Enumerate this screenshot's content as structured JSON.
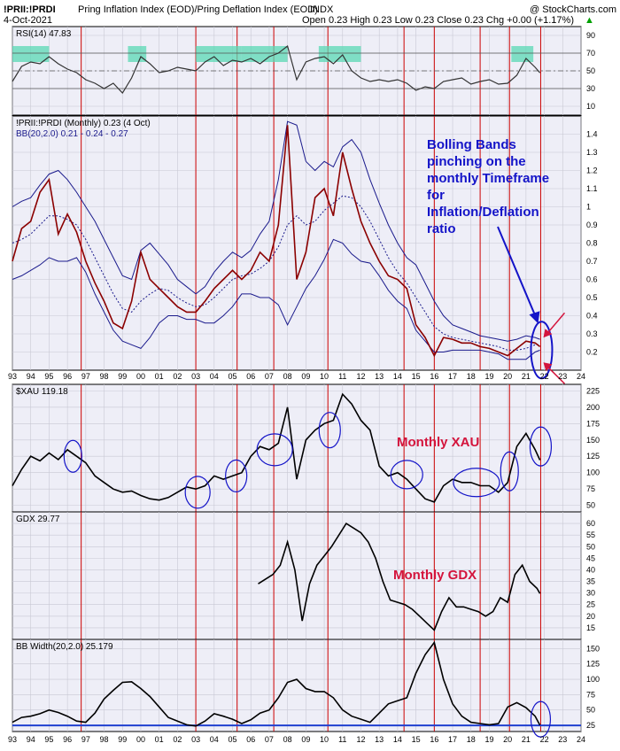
{
  "header": {
    "symbol": "!PRII:!PRDI",
    "title": "Pring Inflation Index (EOD)/Pring Deflation Index (EOD)",
    "exchange": "INDX",
    "watermark": "@ StockCharts.com",
    "date": "4-Oct-2021",
    "ohlc": "Open 0.23  High 0.23  Low 0.23  Close 0.23  Chg +0.00 (+1.17%)",
    "chg_arrow": "▲"
  },
  "colors": {
    "background": "#ffffff",
    "panel_bg": "#eeeef7",
    "grid": "#c8c8d4",
    "vline": "#cc0000",
    "price": "#8b0000",
    "bands": "#1a1a8c",
    "rsi_fill": "#5ad8b4",
    "black": "#000000",
    "annotation_blue": "#1414c8",
    "annotation_red": "#d4143c",
    "zero_line": "#2040d0"
  },
  "x_axis": {
    "start_year": 1993,
    "end_year": 2024,
    "tick_labels": [
      "93",
      "94",
      "95",
      "96",
      "97",
      "98",
      "99",
      "00",
      "01",
      "02",
      "03",
      "04",
      "05",
      "06",
      "07",
      "08",
      "09",
      "10",
      "11",
      "12",
      "13",
      "14",
      "15",
      "16",
      "17",
      "18",
      "19",
      "20",
      "21",
      "22",
      "23",
      "24"
    ],
    "red_vertical_line_years": [
      1996.75,
      2003.0,
      2005.25,
      2007.25,
      2010.2,
      2014.35,
      2016.0,
      2018.5,
      2020.1,
      2021.8
    ]
  },
  "annotations": {
    "bollinger": [
      "Bolling Bands",
      "pinching on the",
      "monthly Timeframe",
      "for",
      "Inflation/Deflation",
      "ratio"
    ],
    "xau": "Monthly XAU",
    "gdx": "Monthly GDX"
  },
  "chart_data": [
    {
      "type": "line",
      "panel": "rsi",
      "label": "RSI(14) 47.83",
      "ylim": [
        0,
        100
      ],
      "y_ticks": [
        10,
        30,
        50,
        70,
        90
      ],
      "reference_lines": [
        30,
        50,
        70
      ],
      "x": [
        1993,
        1993.5,
        1994,
        1994.5,
        1995,
        1995.5,
        1996,
        1996.5,
        1997,
        1997.5,
        1998,
        1998.5,
        1999,
        1999.5,
        2000,
        2000.5,
        2001,
        2001.5,
        2002,
        2002.5,
        2003,
        2003.5,
        2004,
        2004.5,
        2005,
        2005.5,
        2006,
        2006.5,
        2007,
        2007.5,
        2008,
        2008.5,
        2009,
        2009.5,
        2010,
        2010.5,
        2011,
        2011.5,
        2012,
        2012.5,
        2013,
        2013.5,
        2014,
        2014.5,
        2015,
        2015.5,
        2016,
        2016.5,
        2017,
        2017.5,
        2018,
        2018.5,
        2019,
        2019.5,
        2020,
        2020.5,
        2021,
        2021.5,
        2021.76
      ],
      "values": [
        38,
        55,
        60,
        58,
        66,
        58,
        52,
        48,
        40,
        36,
        30,
        36,
        25,
        42,
        66,
        58,
        48,
        50,
        54,
        52,
        50,
        60,
        66,
        56,
        62,
        60,
        64,
        58,
        66,
        70,
        78,
        40,
        60,
        64,
        66,
        58,
        68,
        50,
        42,
        38,
        40,
        38,
        40,
        36,
        28,
        32,
        30,
        38,
        40,
        42,
        35,
        38,
        40,
        35,
        36,
        45,
        64,
        54,
        47.83
      ],
      "overbought_shaded_ranges": [
        [
          1993.0,
          1995.0
        ],
        [
          1999.3,
          2000.3
        ],
        [
          2003.0,
          2005.5
        ],
        [
          2005.5,
          2007.0
        ],
        [
          2007.0,
          2008.0
        ],
        [
          2009.7,
          2011.0
        ],
        [
          2011.0,
          2012.0
        ],
        [
          2020.2,
          2021.4
        ]
      ]
    },
    {
      "type": "line",
      "panel": "ratio",
      "label": "!PRII:!PRDI (Monthly) 0.23 (4 Oct)",
      "bands_label": "BB(20,2.0) 0.21 - 0.24 - 0.27",
      "ylim": [
        0.1,
        1.5
      ],
      "y_ticks": [
        0.2,
        0.3,
        0.4,
        0.5,
        0.6,
        0.7,
        0.8,
        0.9,
        1.0,
        1.1,
        1.2,
        1.3,
        1.4
      ],
      "x": [
        1993,
        1993.5,
        1994,
        1994.5,
        1995,
        1995.5,
        1996,
        1996.5,
        1997,
        1997.5,
        1998,
        1998.5,
        1999,
        1999.5,
        2000,
        2000.5,
        2001,
        2001.5,
        2002,
        2002.5,
        2003,
        2003.5,
        2004,
        2004.5,
        2005,
        2005.5,
        2006,
        2006.5,
        2007,
        2007.5,
        2008,
        2008.5,
        2009,
        2009.5,
        2010,
        2010.5,
        2011,
        2011.5,
        2012,
        2012.5,
        2013,
        2013.5,
        2014,
        2014.5,
        2015,
        2015.5,
        2016,
        2016.5,
        2017,
        2017.5,
        2018,
        2018.5,
        2019,
        2019.5,
        2020,
        2020.5,
        2021,
        2021.5,
        2021.76
      ],
      "values": [
        0.7,
        0.88,
        0.92,
        1.08,
        1.15,
        0.85,
        0.96,
        0.86,
        0.7,
        0.58,
        0.48,
        0.36,
        0.33,
        0.48,
        0.75,
        0.6,
        0.55,
        0.5,
        0.45,
        0.42,
        0.42,
        0.48,
        0.55,
        0.6,
        0.65,
        0.6,
        0.65,
        0.75,
        0.7,
        0.9,
        1.45,
        0.6,
        0.75,
        1.05,
        1.1,
        0.95,
        1.3,
        1.1,
        0.92,
        0.8,
        0.7,
        0.62,
        0.6,
        0.55,
        0.35,
        0.28,
        0.18,
        0.28,
        0.27,
        0.25,
        0.25,
        0.23,
        0.22,
        0.2,
        0.18,
        0.22,
        0.26,
        0.25,
        0.23
      ],
      "middle_band": [
        0.8,
        0.82,
        0.85,
        0.9,
        0.95,
        0.95,
        0.93,
        0.9,
        0.82,
        0.72,
        0.62,
        0.52,
        0.44,
        0.42,
        0.48,
        0.52,
        0.55,
        0.54,
        0.5,
        0.47,
        0.45,
        0.46,
        0.5,
        0.55,
        0.6,
        0.62,
        0.63,
        0.66,
        0.7,
        0.78,
        0.9,
        0.95,
        0.9,
        0.92,
        0.98,
        1.02,
        1.06,
        1.05,
        1.0,
        0.92,
        0.82,
        0.72,
        0.64,
        0.58,
        0.5,
        0.42,
        0.34,
        0.3,
        0.28,
        0.27,
        0.26,
        0.25,
        0.24,
        0.23,
        0.21,
        0.21,
        0.22,
        0.24,
        0.24
      ],
      "upper_band": [
        1.0,
        1.03,
        1.05,
        1.12,
        1.18,
        1.2,
        1.15,
        1.08,
        1.0,
        0.92,
        0.82,
        0.72,
        0.62,
        0.6,
        0.76,
        0.8,
        0.74,
        0.68,
        0.6,
        0.56,
        0.52,
        0.56,
        0.64,
        0.7,
        0.75,
        0.72,
        0.76,
        0.85,
        0.92,
        1.15,
        1.47,
        1.45,
        1.25,
        1.2,
        1.25,
        1.22,
        1.33,
        1.37,
        1.3,
        1.15,
        1.02,
        0.9,
        0.8,
        0.72,
        0.68,
        0.58,
        0.48,
        0.4,
        0.35,
        0.33,
        0.31,
        0.29,
        0.28,
        0.27,
        0.26,
        0.27,
        0.29,
        0.28,
        0.27
      ],
      "lower_band": [
        0.6,
        0.62,
        0.65,
        0.68,
        0.72,
        0.7,
        0.7,
        0.72,
        0.64,
        0.52,
        0.42,
        0.32,
        0.26,
        0.24,
        0.22,
        0.28,
        0.36,
        0.4,
        0.4,
        0.38,
        0.38,
        0.36,
        0.36,
        0.4,
        0.45,
        0.52,
        0.52,
        0.5,
        0.5,
        0.46,
        0.35,
        0.45,
        0.55,
        0.62,
        0.71,
        0.82,
        0.8,
        0.74,
        0.7,
        0.69,
        0.62,
        0.54,
        0.48,
        0.44,
        0.32,
        0.26,
        0.2,
        0.2,
        0.21,
        0.21,
        0.21,
        0.21,
        0.2,
        0.19,
        0.16,
        0.16,
        0.16,
        0.2,
        0.21
      ]
    },
    {
      "type": "line",
      "panel": "xau",
      "label": "$XAU 119.18",
      "ylim": [
        40,
        235
      ],
      "y_ticks": [
        50,
        75,
        100,
        125,
        150,
        175,
        200,
        225
      ],
      "x": [
        1993,
        1993.5,
        1994,
        1994.5,
        1995,
        1995.5,
        1996,
        1996.5,
        1997,
        1997.5,
        1998,
        1998.5,
        1999,
        1999.5,
        2000,
        2000.5,
        2001,
        2001.5,
        2002,
        2002.5,
        2003,
        2003.5,
        2004,
        2004.5,
        2005,
        2005.5,
        2006,
        2006.5,
        2007,
        2007.5,
        2008,
        2008.5,
        2009,
        2009.5,
        2010,
        2010.5,
        2011,
        2011.5,
        2012,
        2012.5,
        2013,
        2013.5,
        2014,
        2014.5,
        2015,
        2015.5,
        2016,
        2016.5,
        2017,
        2017.5,
        2018,
        2018.5,
        2019,
        2019.5,
        2020,
        2020.5,
        2021,
        2021.5,
        2021.76
      ],
      "values": [
        80,
        105,
        125,
        118,
        130,
        120,
        135,
        125,
        115,
        95,
        85,
        75,
        70,
        72,
        65,
        60,
        58,
        62,
        70,
        78,
        75,
        80,
        95,
        90,
        95,
        100,
        125,
        140,
        135,
        145,
        200,
        90,
        150,
        165,
        175,
        180,
        220,
        205,
        180,
        165,
        110,
        95,
        100,
        90,
        75,
        60,
        55,
        80,
        90,
        85,
        85,
        80,
        80,
        70,
        85,
        140,
        160,
        135,
        119.18
      ]
    },
    {
      "type": "line",
      "panel": "gdx",
      "label": "GDX 29.77",
      "ylim": [
        10,
        65
      ],
      "y_ticks": [
        15,
        20,
        25,
        30,
        35,
        40,
        45,
        50,
        55,
        60
      ],
      "x": [
        2006.4,
        2006.8,
        2007.2,
        2007.6,
        2008,
        2008.4,
        2008.8,
        2009.2,
        2009.6,
        2010,
        2010.4,
        2010.8,
        2011.2,
        2011.6,
        2012,
        2012.4,
        2012.8,
        2013.2,
        2013.6,
        2014,
        2014.4,
        2014.8,
        2015.2,
        2015.6,
        2016,
        2016.4,
        2016.8,
        2017.2,
        2017.6,
        2018,
        2018.4,
        2018.8,
        2019.2,
        2019.6,
        2020,
        2020.4,
        2020.8,
        2021.2,
        2021.6,
        2021.76
      ],
      "values": [
        34,
        36,
        38,
        42,
        52,
        40,
        18,
        34,
        42,
        46,
        50,
        55,
        60,
        58,
        56,
        52,
        45,
        35,
        27,
        26,
        25,
        23,
        20,
        17,
        14,
        22,
        28,
        24,
        24,
        23,
        22,
        20,
        22,
        28,
        26,
        38,
        42,
        35,
        32,
        29.77
      ]
    },
    {
      "type": "line",
      "panel": "bbwidth",
      "label": "BB Width(20,2.0) 25.179",
      "ylim": [
        15,
        165
      ],
      "y_ticks": [
        25,
        50,
        75,
        100,
        125,
        150
      ],
      "x": [
        1993,
        1993.5,
        1994,
        1994.5,
        1995,
        1995.5,
        1996,
        1996.5,
        1997,
        1997.5,
        1998,
        1998.5,
        1999,
        1999.5,
        2000,
        2000.5,
        2001,
        2001.5,
        2002,
        2002.5,
        2003,
        2003.5,
        2004,
        2004.5,
        2005,
        2005.5,
        2006,
        2006.5,
        2007,
        2007.5,
        2008,
        2008.5,
        2009,
        2009.5,
        2010,
        2010.5,
        2011,
        2011.5,
        2012,
        2012.5,
        2013,
        2013.5,
        2014,
        2014.5,
        2015,
        2015.5,
        2016,
        2016.5,
        2017,
        2017.5,
        2018,
        2018.5,
        2019,
        2019.5,
        2020,
        2020.5,
        2021,
        2021.5,
        2021.76
      ],
      "values": [
        30,
        38,
        40,
        44,
        50,
        46,
        40,
        32,
        30,
        45,
        68,
        82,
        95,
        96,
        85,
        72,
        55,
        38,
        32,
        26,
        24,
        32,
        44,
        40,
        35,
        28,
        34,
        45,
        50,
        70,
        95,
        100,
        85,
        80,
        80,
        70,
        50,
        40,
        35,
        30,
        45,
        60,
        65,
        70,
        110,
        140,
        160,
        100,
        60,
        40,
        30,
        28,
        26,
        28,
        55,
        62,
        54,
        40,
        25.18
      ]
    }
  ]
}
